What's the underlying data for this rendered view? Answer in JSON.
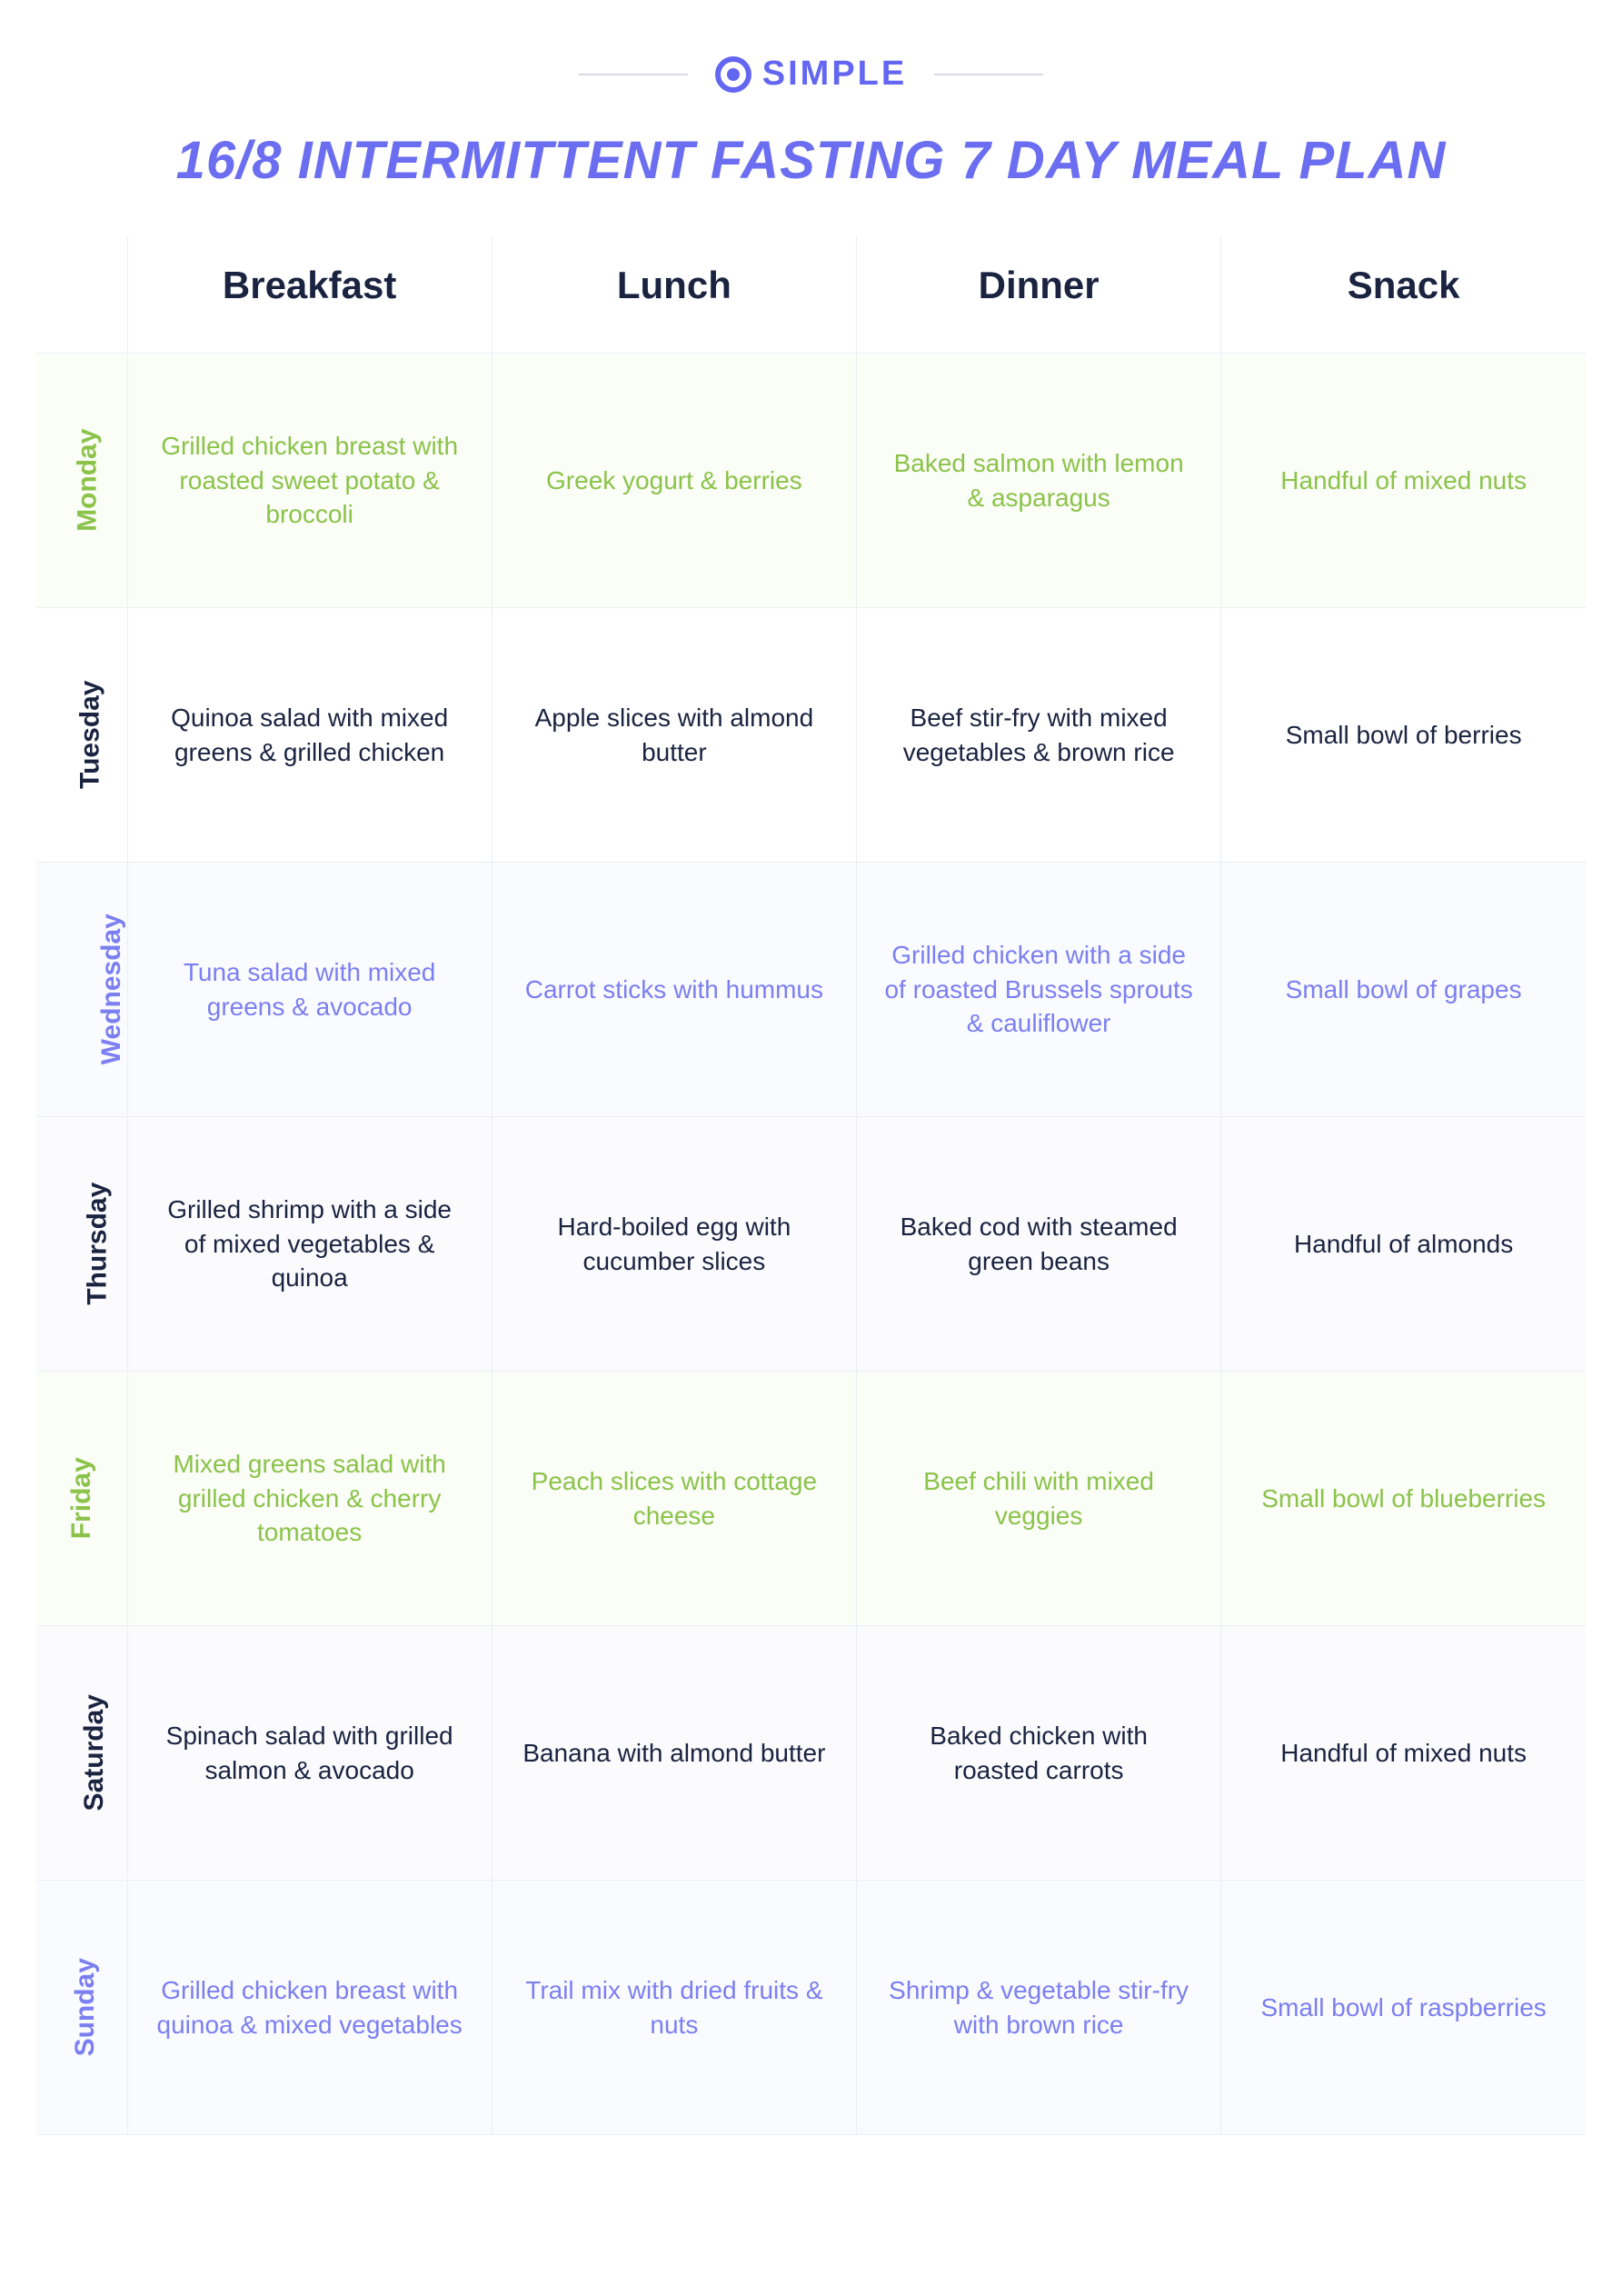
{
  "brand": {
    "name": "SIMPLE"
  },
  "title": "16/8 INTERMITTENT FASTING 7 DAY MEAL PLAN",
  "columns": [
    "Breakfast",
    "Lunch",
    "Dinner",
    "Snack"
  ],
  "colors": {
    "accent": "#6b6ef0",
    "logo": "#6366f1",
    "green": "#8bc34a",
    "dark": "#1a2340",
    "purple": "#7b7ff0",
    "border": "#eceef5",
    "bg_green": "#fbfdf7",
    "bg_purple": "#fafbff",
    "bg_alt": "#fbfbfd"
  },
  "rows": [
    {
      "day": "Monday",
      "style": "green",
      "breakfast": "Grilled chicken breast with roasted sweet potato & broccoli",
      "lunch": "Greek yogurt & berries",
      "dinner": "Baked salmon with lemon & asparagus",
      "snack": "Handful of mixed nuts"
    },
    {
      "day": "Tuesday",
      "style": "dark",
      "breakfast": "Quinoa salad with mixed greens & grilled chicken",
      "lunch": "Apple slices with almond butter",
      "dinner": "Beef stir-fry with mixed vegetables & brown rice",
      "snack": "Small bowl of berries"
    },
    {
      "day": "Wednesday",
      "style": "purple",
      "breakfast": "Tuna salad with mixed greens & avocado",
      "lunch": "Carrot sticks with hummus",
      "dinner": "Grilled chicken with a side of roasted Brussels sprouts & cauliflower",
      "snack": "Small bowl of grapes"
    },
    {
      "day": "Thursday",
      "style": "dark",
      "breakfast": "Grilled shrimp with a side of mixed vegetables & quinoa",
      "lunch": "Hard-boiled egg with cucumber slices",
      "dinner": "Baked cod with steamed green beans",
      "snack": "Handful of almonds"
    },
    {
      "day": "Friday",
      "style": "green",
      "breakfast": "Mixed greens salad with grilled chicken & cherry tomatoes",
      "lunch": "Peach slices with cottage cheese",
      "dinner": "Beef chili with mixed veggies",
      "snack": "Small bowl of blueberries"
    },
    {
      "day": "Saturday",
      "style": "dark",
      "breakfast": "Spinach salad with grilled salmon & avocado",
      "lunch": "Banana with almond butter",
      "dinner": "Baked chicken with roasted carrots",
      "snack": "Handful of mixed nuts"
    },
    {
      "day": "Sunday",
      "style": "purple",
      "breakfast": "Grilled chicken breast with quinoa & mixed vegetables",
      "lunch": "Trail mix with dried fruits & nuts",
      "dinner": "Shrimp & vegetable stir-fry with brown rice",
      "snack": "Small bowl of raspberries"
    }
  ]
}
